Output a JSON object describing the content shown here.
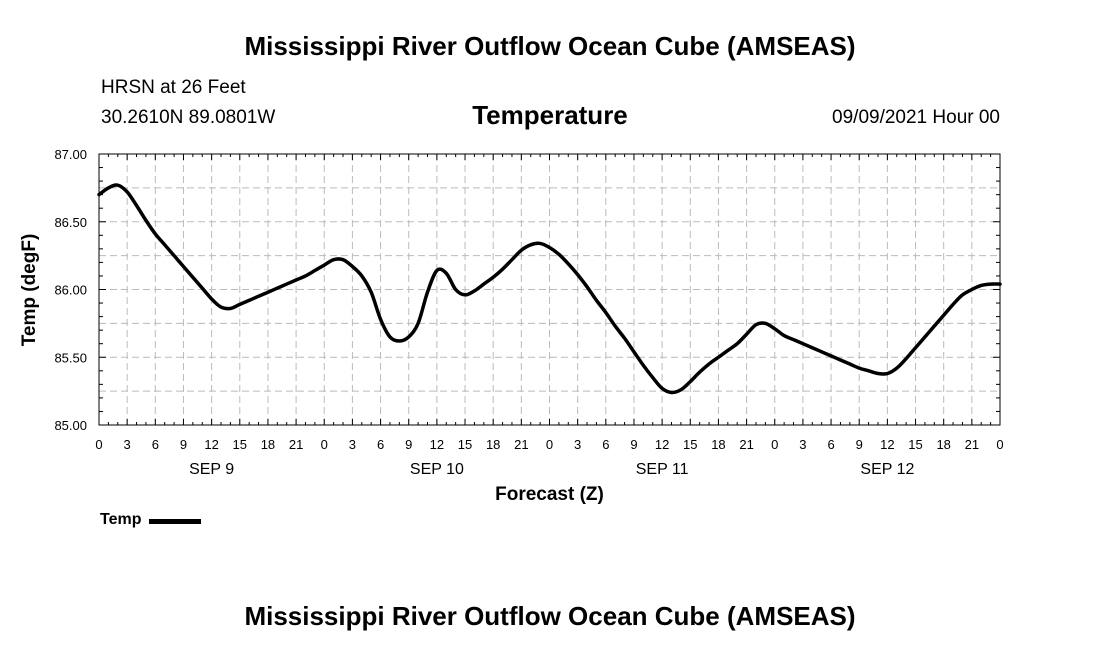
{
  "header": {
    "title": "Mississippi River Outflow Ocean Cube (AMSEAS)",
    "station": "HRSN at 26 Feet",
    "coordinates": "30.2610N  89.0801W",
    "variable": "Temperature",
    "run_time": "09/09/2021 Hour 00"
  },
  "footer": {
    "title": "Mississippi River Outflow Ocean Cube (AMSEAS)"
  },
  "legend": {
    "label": "Temp"
  },
  "colors": {
    "line": "#000000",
    "grid": "#bbbbbb",
    "background": "#ffffff"
  },
  "chart_data": {
    "type": "line",
    "title": "Temperature",
    "xlabel": "Forecast (Z)",
    "ylabel": "Temp (degF)",
    "ylim": [
      85.0,
      87.0
    ],
    "xlim": [
      0,
      96
    ],
    "yticks": [
      85.0,
      85.5,
      86.0,
      86.5,
      87.0
    ],
    "ytick_labels": [
      "85.00",
      "85.50",
      "86.00",
      "86.50",
      "87.00"
    ],
    "xticks": [
      0,
      3,
      6,
      9,
      12,
      15,
      18,
      21,
      24,
      27,
      30,
      33,
      36,
      39,
      42,
      45,
      48,
      51,
      54,
      57,
      60,
      63,
      66,
      69,
      72,
      75,
      78,
      81,
      84,
      87,
      90,
      93,
      96
    ],
    "xtick_labels": [
      "0",
      "3",
      "6",
      "9",
      "12",
      "15",
      "18",
      "21",
      "0",
      "3",
      "6",
      "9",
      "12",
      "15",
      "18",
      "21",
      "0",
      "3",
      "6",
      "9",
      "12",
      "15",
      "18",
      "21",
      "0",
      "3",
      "6",
      "9",
      "12",
      "15",
      "18",
      "21",
      "0"
    ],
    "day_labels": [
      {
        "label": "SEP 9",
        "hour": 12
      },
      {
        "label": "SEP 10",
        "hour": 36
      },
      {
        "label": "SEP 11",
        "hour": 60
      },
      {
        "label": "SEP 12",
        "hour": 84
      }
    ],
    "grid": true,
    "legend_position": "bottom-left",
    "series": [
      {
        "name": "Temp",
        "x": [
          0,
          1,
          2,
          3,
          4,
          5,
          6,
          7,
          8,
          9,
          10,
          11,
          12,
          13,
          14,
          15,
          16,
          17,
          18,
          19,
          20,
          21,
          22,
          23,
          24,
          25,
          26,
          27,
          28,
          29,
          30,
          31,
          32,
          33,
          34,
          35,
          36,
          37,
          38,
          39,
          40,
          41,
          42,
          43,
          44,
          45,
          46,
          47,
          48,
          49,
          50,
          51,
          52,
          53,
          54,
          55,
          56,
          57,
          58,
          59,
          60,
          61,
          62,
          63,
          64,
          65,
          66,
          67,
          68,
          69,
          70,
          71,
          72,
          73,
          74,
          75,
          76,
          77,
          78,
          79,
          80,
          81,
          82,
          83,
          84,
          85,
          86,
          87,
          88,
          89,
          90,
          91,
          92,
          93,
          94,
          95,
          96
        ],
        "values": [
          86.7,
          86.75,
          86.77,
          86.72,
          86.62,
          86.51,
          86.41,
          86.33,
          86.25,
          86.17,
          86.09,
          86.01,
          85.93,
          85.87,
          85.86,
          85.89,
          85.92,
          85.95,
          85.98,
          86.01,
          86.04,
          86.07,
          86.1,
          86.14,
          86.18,
          86.22,
          86.22,
          86.17,
          86.1,
          85.98,
          85.78,
          85.65,
          85.62,
          85.65,
          85.75,
          85.98,
          86.14,
          86.12,
          86.0,
          85.96,
          85.99,
          86.04,
          86.09,
          86.15,
          86.22,
          86.29,
          86.33,
          86.34,
          86.31,
          86.26,
          86.19,
          86.11,
          86.02,
          85.92,
          85.83,
          85.73,
          85.64,
          85.54,
          85.44,
          85.35,
          85.27,
          85.24,
          85.26,
          85.32,
          85.39,
          85.45,
          85.5,
          85.55,
          85.6,
          85.67,
          85.74,
          85.75,
          85.71,
          85.66,
          85.63,
          85.6,
          85.57,
          85.54,
          85.51,
          85.48,
          85.45,
          85.42,
          85.4,
          85.38,
          85.38,
          85.42,
          85.49,
          85.57,
          85.65,
          85.73,
          85.81,
          85.89,
          85.96,
          86.0,
          86.03,
          86.04,
          86.04
        ]
      }
    ]
  }
}
